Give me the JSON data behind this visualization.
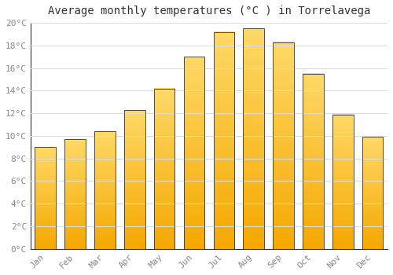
{
  "title": "Average monthly temperatures (°C ) in Torrelavega",
  "months": [
    "Jan",
    "Feb",
    "Mar",
    "Apr",
    "May",
    "Jun",
    "Jul",
    "Aug",
    "Sep",
    "Oct",
    "Nov",
    "Dec"
  ],
  "values": [
    9.0,
    9.7,
    10.4,
    12.3,
    14.2,
    17.0,
    19.2,
    19.5,
    18.3,
    15.5,
    11.9,
    9.9
  ],
  "bar_color_bottom": "#F5A800",
  "bar_color_top": "#FFD966",
  "bar_edge_color": "#333333",
  "background_color": "#FFFFFF",
  "plot_bg_color": "#FFFFFF",
  "grid_color": "#DDDDDD",
  "ylim": [
    0,
    20
  ],
  "ytick_step": 2,
  "title_fontsize": 10,
  "tick_fontsize": 8,
  "tick_color": "#888888",
  "axis_color": "#333333",
  "title_color": "#333333"
}
